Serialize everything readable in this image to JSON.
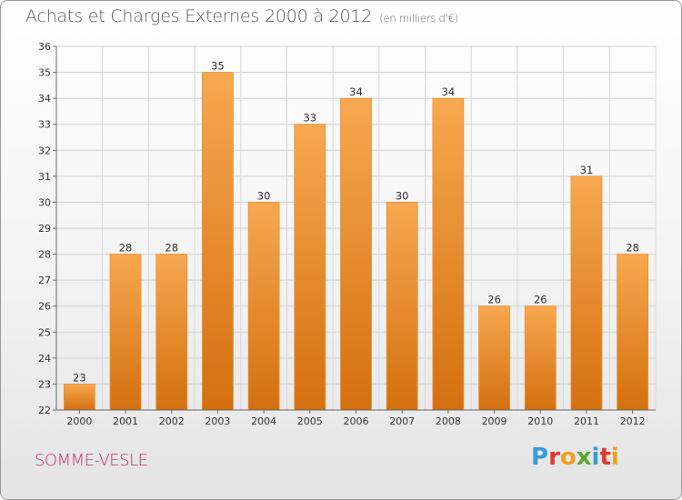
{
  "header": {
    "title": "Achats et Charges Externes 2000 à 2012",
    "unit": "(en milliers d'€)"
  },
  "footer": {
    "town": "SOMME-VESLE",
    "logo": "Proxiti"
  },
  "colors": {
    "bar_light": "#f7a850",
    "bar_dark": "#d4700f",
    "town": "#c0306a",
    "logo_letters": [
      "#3a9ad9",
      "#e03b2f",
      "#f0a020",
      "#5aa832",
      "#3a9ad9",
      "#e03b2f",
      "#f0a020"
    ]
  },
  "chart_data": {
    "type": "bar",
    "title": "Achats et Charges Externes 2000 à 2012",
    "categories": [
      "2000",
      "2001",
      "2002",
      "2003",
      "2004",
      "2005",
      "2006",
      "2007",
      "2008",
      "2009",
      "2010",
      "2011",
      "2012"
    ],
    "values": [
      23,
      28,
      28,
      35,
      30,
      33,
      34,
      30,
      34,
      26,
      26,
      31,
      28
    ],
    "ylim": [
      22,
      36
    ],
    "yticks": [
      22,
      23,
      24,
      25,
      26,
      27,
      28,
      29,
      30,
      31,
      32,
      33,
      34,
      35,
      36
    ],
    "grid": true,
    "xlabel": "",
    "ylabel": ""
  }
}
